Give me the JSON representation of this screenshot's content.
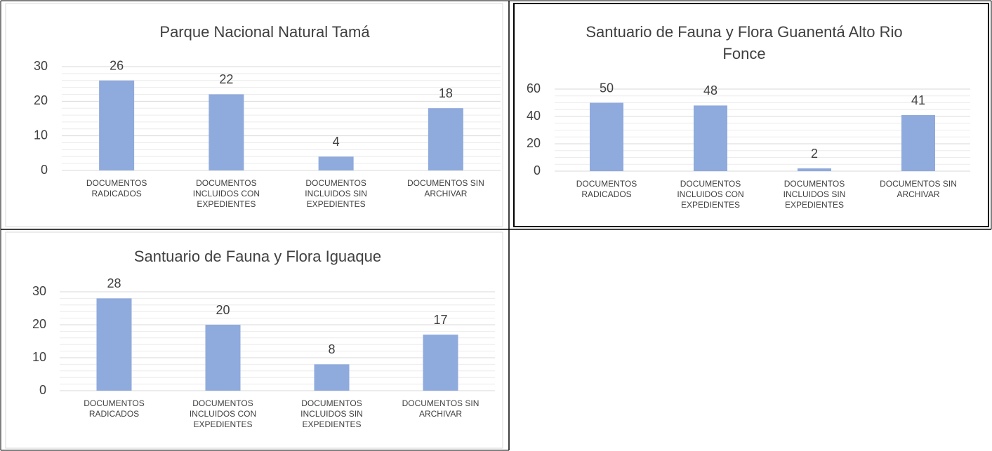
{
  "chart_data": [
    {
      "type": "bar",
      "title": "Parque Nacional Natural Tamá",
      "categories": [
        "DOCUMENTOS RADICADOS",
        "DOCUMENTOS INCLUIDOS CON EXPEDIENTES",
        "DOCUMENTOS INCLUIDOS SIN EXPEDIENTES",
        "DOCUMENTOS SIN ARCHIVAR"
      ],
      "values": [
        26,
        22,
        4,
        18
      ],
      "color": "#8faadc",
      "ylim": [
        0,
        30
      ],
      "yticks": [
        0,
        10,
        20,
        30
      ],
      "minor_yticks": [
        2,
        4,
        6,
        8,
        12,
        14,
        16,
        18,
        22,
        24,
        26,
        28
      ],
      "grid": true
    },
    {
      "type": "bar",
      "title": "Santuario de Fauna y Flora Guanentá Alto Rio Fonce",
      "categories": [
        "DOCUMENTOS RADICADOS",
        "DOCUMENTOS INCLUIDOS CON EXPEDIENTES",
        "DOCUMENTOS INCLUIDOS SIN EXPEDIENTES",
        "DOCUMENTOS SIN ARCHIVAR"
      ],
      "values": [
        50,
        48,
        2,
        41
      ],
      "color": "#8faadc",
      "ylim": [
        0,
        60
      ],
      "yticks": [
        0,
        20,
        40,
        60
      ],
      "minor_yticks": [
        5,
        10,
        15,
        25,
        30,
        35,
        45,
        50,
        55
      ],
      "grid": true
    },
    {
      "type": "bar",
      "title": "Santuario de Fauna y Flora Iguaque",
      "categories": [
        "DOCUMENTOS RADICADOS",
        "DOCUMENTOS INCLUIDOS CON EXPEDIENTES",
        "DOCUMENTOS INCLUIDOS SIN EXPEDIENTES",
        "DOCUMENTOS SIN ARCHIVAR"
      ],
      "values": [
        28,
        20,
        8,
        17
      ],
      "color": "#8faadc",
      "ylim": [
        0,
        30
      ],
      "yticks": [
        0,
        10,
        20,
        30
      ],
      "minor_yticks": [
        2,
        4,
        6,
        8,
        12,
        14,
        16,
        18,
        22,
        24,
        26,
        28
      ],
      "grid": true
    }
  ]
}
